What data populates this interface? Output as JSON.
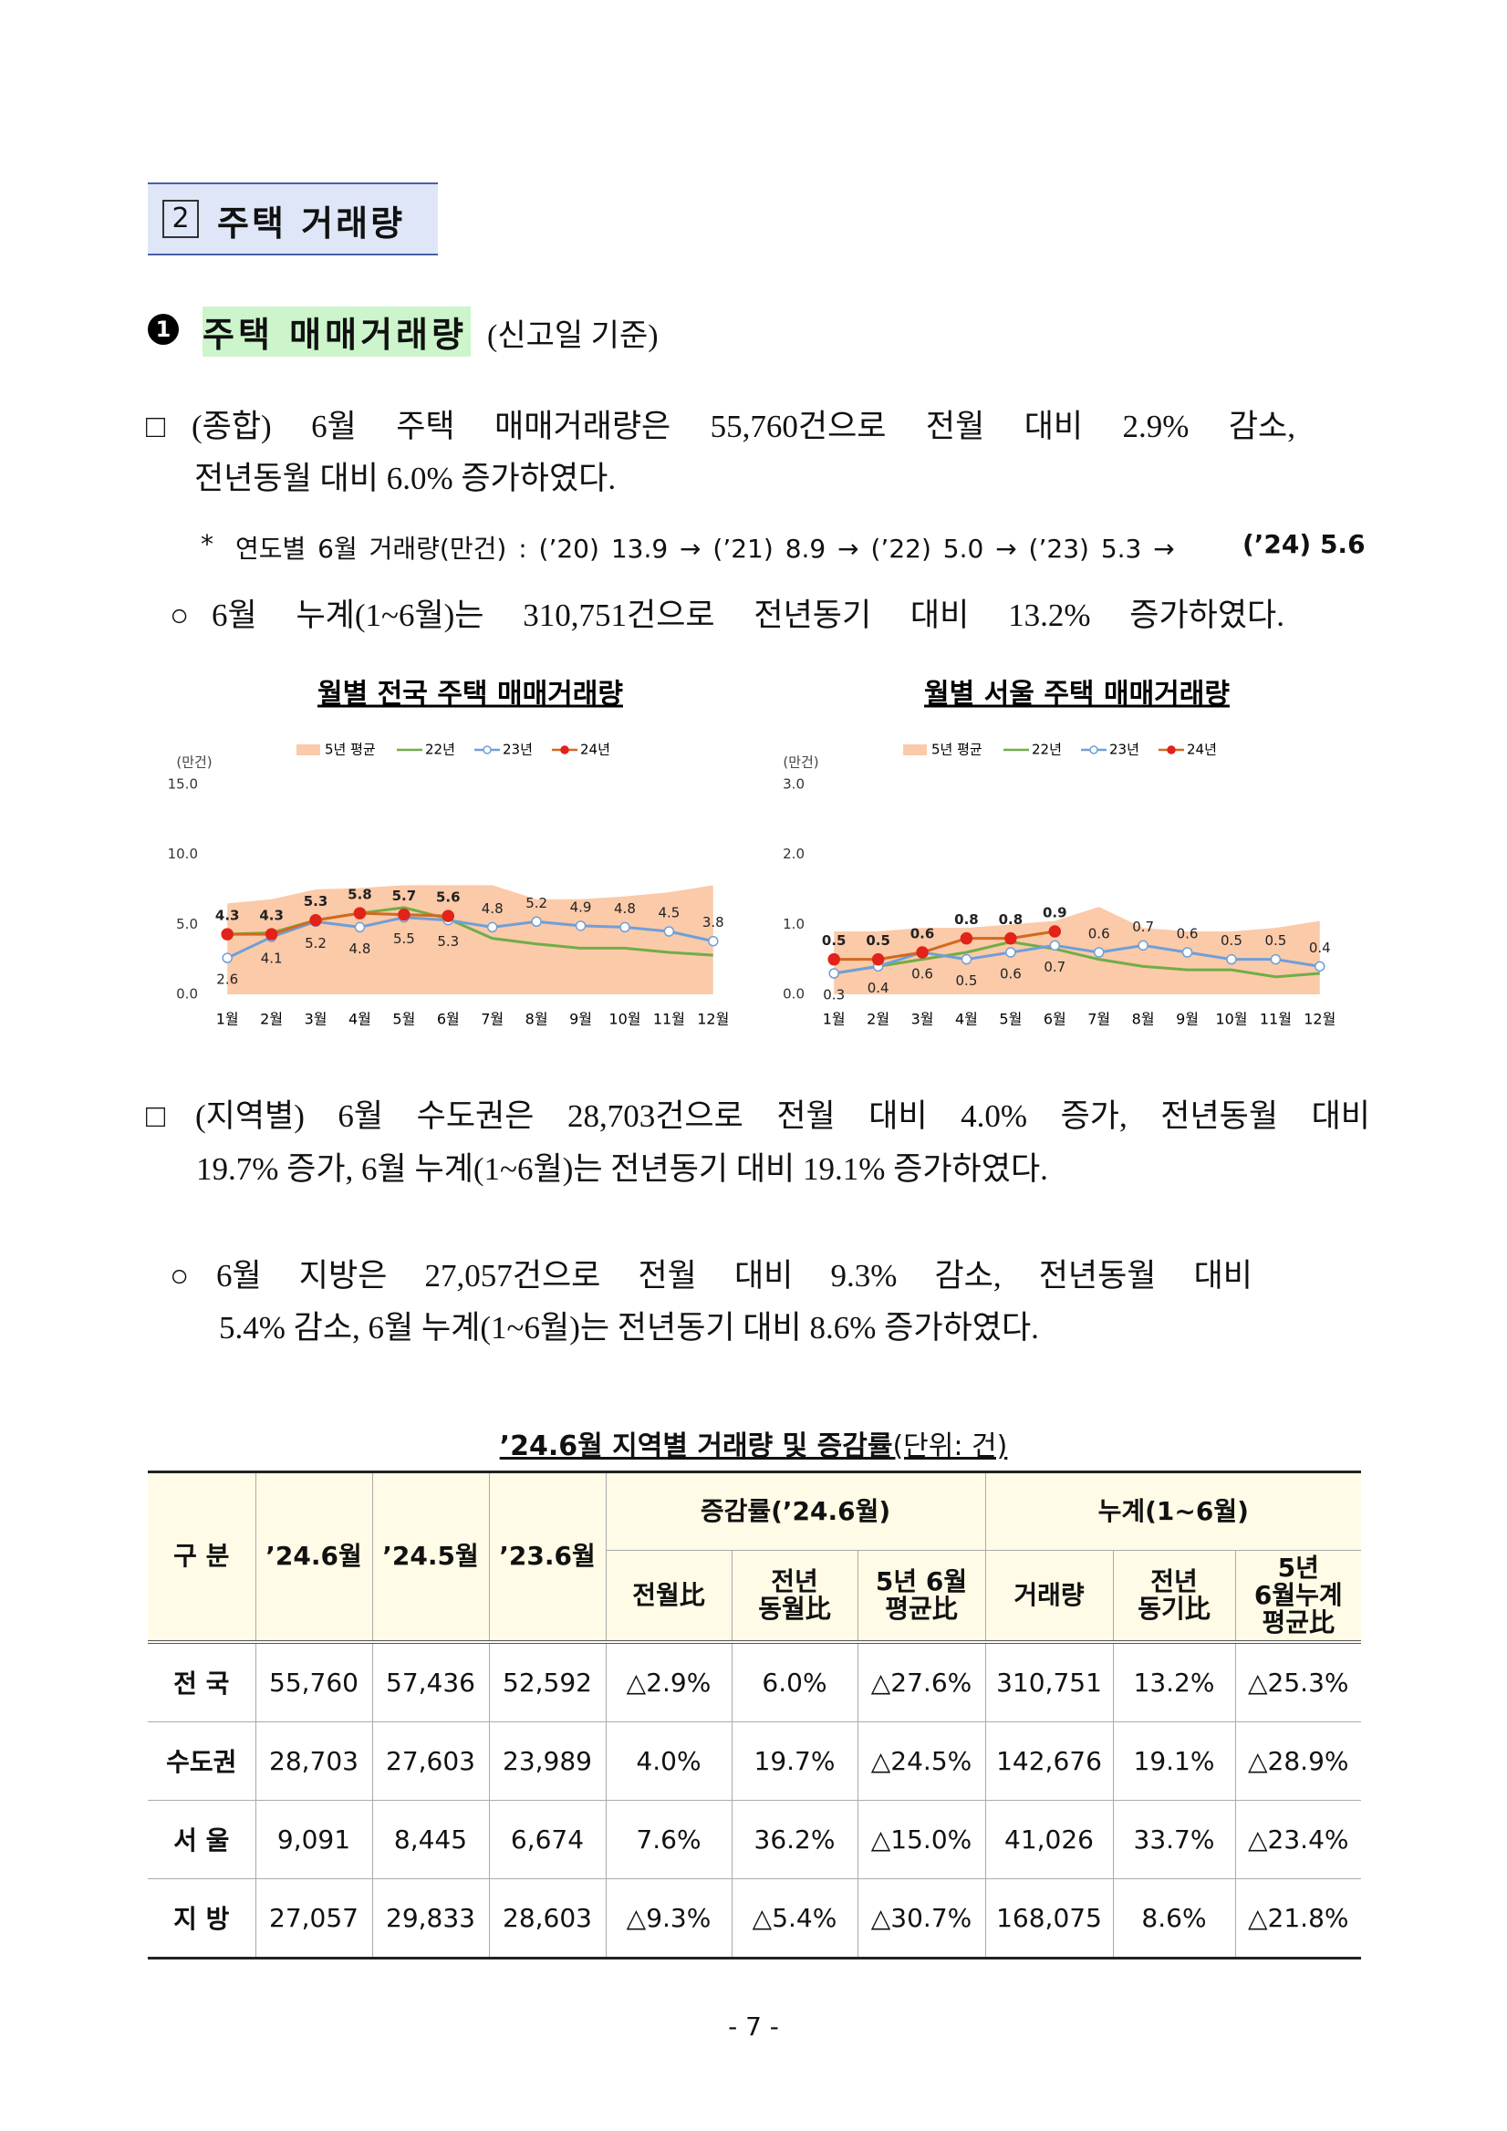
{
  "section": {
    "number": "2",
    "title": "주택 거래량"
  },
  "heading": {
    "number": "1",
    "title": "주택 매매거래량",
    "note": "(신고일 기준)"
  },
  "paragraph1": {
    "marker": "□",
    "lines": [
      "(종합) 6월 주택 매매거래량은 55,760건으로 전월 대비 2.9% 감소,",
      "전년동월 대비 6.0% 증가하였다."
    ]
  },
  "footnote": {
    "marker": "*",
    "text": "연도별 6월 거래량(만건) : (’20) 13.9 → (’21) 8.9 → (’22) 5.0 → (’23) 5.3 →",
    "emphasis": "(’24) 5.6"
  },
  "sub1": {
    "marker": "○",
    "lines": [
      "6월 누계(1~6월)는 310,751건으로 전년동기 대비 13.2% 증가하였다."
    ]
  },
  "charts": [
    {
      "type": "line",
      "title": "월별 전국 주택 매매거래량",
      "unit": "(만건)",
      "categories": [
        "1월",
        "2월",
        "3월",
        "4월",
        "5월",
        "6월",
        "7월",
        "8월",
        "9월",
        "10월",
        "11월",
        "12월"
      ],
      "ylim": [
        0,
        15
      ],
      "yticks": [
        {
          "value": 0,
          "label": "0.0"
        },
        {
          "value": 5,
          "label": "5.0"
        },
        {
          "value": 10,
          "label": "10.0"
        },
        {
          "value": 15,
          "label": "15.0"
        }
      ],
      "grid": false,
      "series": [
        {
          "name": "5년 평균",
          "style": "area",
          "color": "#fbcaa9",
          "values": [
            6.5,
            6.8,
            7.5,
            7.6,
            7.8,
            7.8,
            7.8,
            6.8,
            6.8,
            7.0,
            7.3,
            7.8
          ]
        },
        {
          "name": "22년",
          "style": "line",
          "color": "#70ad47",
          "values": [
            4.3,
            4.4,
            5.3,
            5.8,
            6.2,
            5.4,
            4.0,
            3.6,
            3.3,
            3.3,
            3.0,
            2.8
          ]
        },
        {
          "name": "23년",
          "style": "hollow",
          "color": "#6f9fd8",
          "show_labels": true,
          "values": [
            2.6,
            4.1,
            5.2,
            4.8,
            5.5,
            5.3,
            4.8,
            5.2,
            4.9,
            4.8,
            4.5,
            3.8
          ]
        },
        {
          "name": "24년",
          "style": "filled",
          "color": "#e2231a",
          "line_color": "#d2691e",
          "show_labels": true,
          "values": [
            4.3,
            4.3,
            5.3,
            5.8,
            5.7,
            5.6,
            null,
            null,
            null,
            null,
            null,
            null
          ]
        }
      ]
    },
    {
      "type": "line",
      "title": "월별 서울 주택 매매거래량",
      "unit": "(만건)",
      "categories": [
        "1월",
        "2월",
        "3월",
        "4월",
        "5월",
        "6월",
        "7월",
        "8월",
        "9월",
        "10월",
        "11월",
        "12월"
      ],
      "ylim": [
        0,
        3
      ],
      "yticks": [
        {
          "value": 0,
          "label": "0.0"
        },
        {
          "value": 1,
          "label": "1.0"
        },
        {
          "value": 2,
          "label": "2.0"
        },
        {
          "value": 3,
          "label": "3.0"
        }
      ],
      "grid": false,
      "series": [
        {
          "name": "5년 평균",
          "style": "area",
          "color": "#fbcaa9",
          "values": [
            0.9,
            0.9,
            0.95,
            0.95,
            1.0,
            1.05,
            1.25,
            0.95,
            0.9,
            0.9,
            0.95,
            1.05
          ]
        },
        {
          "name": "22년",
          "style": "line",
          "color": "#70ad47",
          "values": [
            0.3,
            0.4,
            0.5,
            0.6,
            0.75,
            0.65,
            0.5,
            0.4,
            0.35,
            0.35,
            0.25,
            0.3
          ]
        },
        {
          "name": "23년",
          "style": "hollow",
          "color": "#6f9fd8",
          "show_labels": true,
          "values": [
            0.3,
            0.4,
            0.6,
            0.5,
            0.6,
            0.7,
            0.6,
            0.7,
            0.6,
            0.5,
            0.5,
            0.4
          ]
        },
        {
          "name": "24년",
          "style": "filled",
          "color": "#e2231a",
          "line_color": "#d2691e",
          "show_labels": true,
          "values": [
            0.5,
            0.5,
            0.6,
            0.8,
            0.8,
            0.9,
            null,
            null,
            null,
            null,
            null,
            null
          ]
        }
      ]
    }
  ],
  "paragraph2": {
    "marker": "□",
    "lines": [
      "(지역별) 6월 수도권은 28,703건으로 전월 대비 4.0% 증가, 전년동월 대비",
      "19.7% 증가, 6월 누계(1~6월)는 전년동기 대비 19.1% 증가하였다."
    ]
  },
  "sub2": {
    "marker": "○",
    "lines": [
      "6월 지방은 27,057건으로 전월 대비 9.3% 감소, 전년동월 대비",
      "5.4% 감소, 6월 누계(1~6월)는 전년동기 대비 8.6% 증가하였다."
    ]
  },
  "table": {
    "title": "’24.6월 지역별 거래량 및 증감률",
    "unit": "(단위: 건)",
    "columns": [
      "구 분",
      "’24.6월",
      "’24.5월",
      "’23.6월"
    ],
    "groups": [
      {
        "name": "증감률(’24.6월)",
        "columns": [
          [
            "전월比"
          ],
          [
            "전년",
            "동월比"
          ],
          [
            "5년 6월",
            "평균比"
          ]
        ]
      },
      {
        "name": "누계(1~6월)",
        "columns": [
          [
            "거래량"
          ],
          [
            "전년",
            "동기比"
          ],
          [
            "5년",
            "6월누계",
            "평균比"
          ]
        ]
      }
    ],
    "rows": [
      [
        "전 국",
        "55,760",
        "57,436",
        "52,592",
        "△2.9%",
        "6.0%",
        "△27.6%",
        "310,751",
        "13.2%",
        "△25.3%"
      ],
      [
        "수도권",
        "28,703",
        "27,603",
        "23,989",
        "4.0%",
        "19.7%",
        "△24.5%",
        "142,676",
        "19.1%",
        "△28.9%"
      ],
      [
        "서 울",
        "9,091",
        "8,445",
        "6,674",
        "7.6%",
        "36.2%",
        "△15.0%",
        "41,026",
        "33.7%",
        "△23.4%"
      ],
      [
        "지 방",
        "27,057",
        "29,833",
        "28,603",
        "△9.3%",
        "△5.4%",
        "△30.7%",
        "168,075",
        "8.6%",
        "△21.8%"
      ]
    ]
  },
  "page_number": "- 7 -"
}
